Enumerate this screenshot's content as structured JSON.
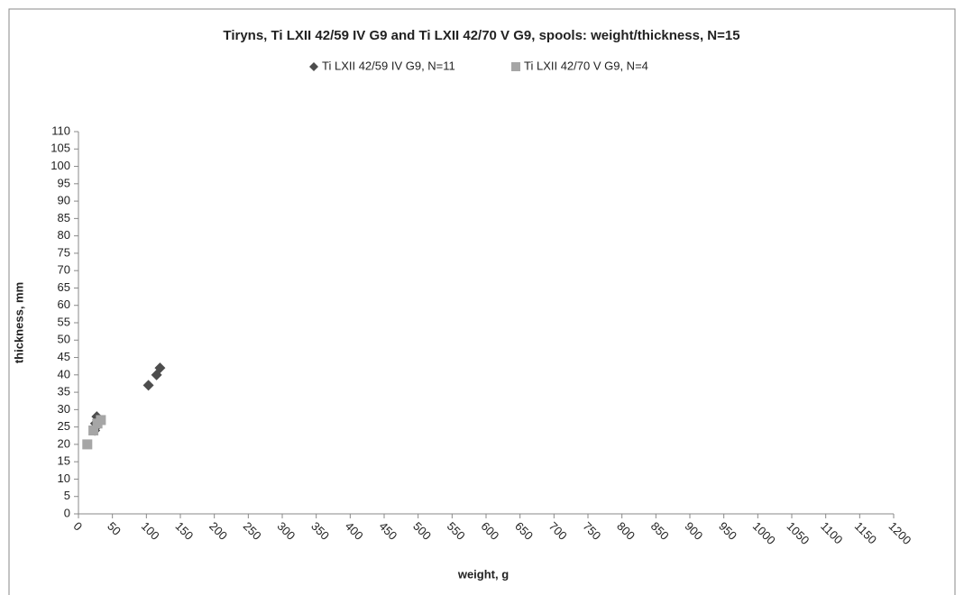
{
  "chart_data": {
    "type": "scatter",
    "title": "Tiryns, Ti LXII 42/59 IV G9 and Ti LXII 42/70 V G9, spools: weight/thickness, N=15",
    "x_label": "weight, g",
    "y_label": "thickness, mm",
    "xlim": [
      0,
      1200
    ],
    "ylim": [
      0,
      110
    ],
    "xticks": [
      0,
      50,
      100,
      150,
      200,
      250,
      300,
      350,
      400,
      450,
      500,
      550,
      600,
      650,
      700,
      750,
      800,
      850,
      900,
      950,
      1000,
      1050,
      1100,
      1150,
      1200
    ],
    "yticks": [
      0,
      5,
      10,
      15,
      20,
      25,
      30,
      35,
      40,
      45,
      50,
      55,
      60,
      65,
      70,
      75,
      80,
      85,
      90,
      95,
      100,
      105,
      110
    ],
    "grid": false,
    "legend": "top",
    "series": [
      {
        "name": "Ti LXII 42/59 IV G9, N=11",
        "color": "#4d4d4d",
        "marker": "diamond",
        "x": [
          27,
          28,
          25,
          30,
          29,
          26,
          32,
          24,
          103,
          115,
          120
        ],
        "values": [
          28,
          27,
          26,
          27,
          26,
          25,
          27,
          24,
          37,
          40,
          42
        ]
      },
      {
        "name": "Ti LXII 42/70 V G9, N=4",
        "color": "#a6a6a6",
        "marker": "square",
        "x": [
          13,
          22,
          28,
          33
        ],
        "values": [
          20,
          24,
          26,
          27
        ]
      }
    ]
  }
}
